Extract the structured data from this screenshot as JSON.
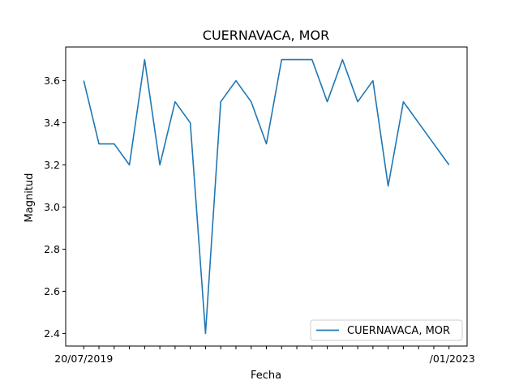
{
  "chart_data": {
    "type": "line",
    "title": "CUERNAVACA, MOR",
    "xlabel": "Fecha",
    "ylabel": "Magnitud",
    "ylim": [
      2.34,
      3.76
    ],
    "yticks": [
      2.4,
      2.6,
      2.8,
      3.0,
      3.2,
      3.4,
      3.6
    ],
    "ytick_labels": [
      "2.4",
      "2.6",
      "2.8",
      "3.0",
      "3.2",
      "3.4",
      "3.6"
    ],
    "grid": false,
    "legend_position": "lower-right",
    "x_tick_labels": [
      "20/07/2019",
      "",
      "",
      "",
      "",
      "",
      "",
      "",
      "",
      "",
      "",
      "",
      "",
      "",
      "",
      "",
      "",
      "",
      "",
      "",
      "",
      "",
      "",
      "",
      "/01/2023"
    ],
    "series": [
      {
        "name": "CUERNAVACA, MOR",
        "color": "#1f77b4",
        "values": [
          3.6,
          3.3,
          3.3,
          3.2,
          3.7,
          3.2,
          3.5,
          3.4,
          2.4,
          3.5,
          3.6,
          3.5,
          3.3,
          3.7,
          3.7,
          3.7,
          3.5,
          3.7,
          3.5,
          3.6,
          3.1,
          3.5,
          3.4,
          3.3,
          3.2
        ]
      }
    ]
  }
}
